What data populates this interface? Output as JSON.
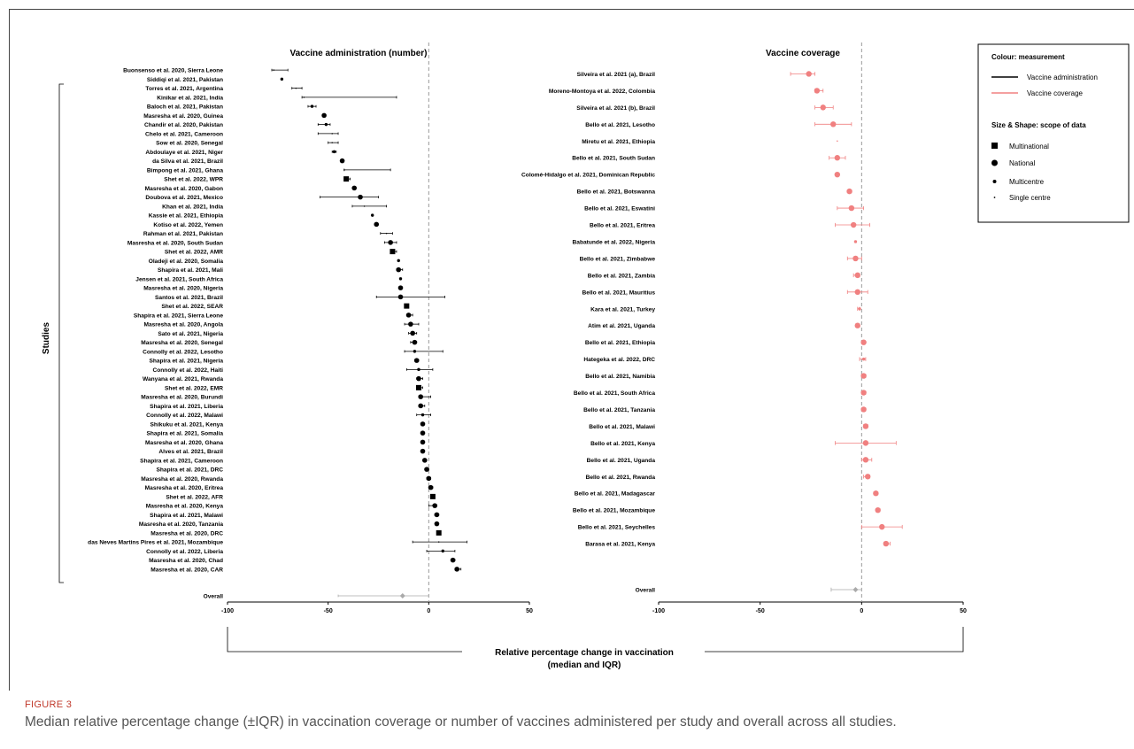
{
  "figure": {
    "label": "FIGURE 3",
    "caption": "Median relative percentage change (±IQR) in vaccination coverage or number of vaccines administered per study and overall across all studies."
  },
  "shared": {
    "y_axis_label": "Studies",
    "x_axis_label_line1": "Relative percentage change in vaccination",
    "x_axis_label_line2": "(median and IQR)"
  },
  "legend": {
    "colour_title": "Colour: measurement",
    "colour_items": [
      {
        "label": "Vaccine administration",
        "color": "#000000"
      },
      {
        "label": "Vaccine coverage",
        "color": "#f08080"
      }
    ],
    "shape_title": "Size & Shape: scope of data",
    "shape_items": [
      {
        "label": "Multinational",
        "shape": "square"
      },
      {
        "label": "National",
        "shape": "large-circle"
      },
      {
        "label": "Multicentre",
        "shape": "medium-circle"
      },
      {
        "label": "Single centre",
        "shape": "small-dot"
      }
    ],
    "placement": "top-right"
  },
  "chart_data": [
    {
      "type": "scatter",
      "title": "Vaccine administration (number)",
      "xlim": [
        -100,
        50
      ],
      "xticks": [
        -100,
        -50,
        0,
        50
      ],
      "reference_line": 0,
      "color": "#000000",
      "overall": {
        "label": "Overall",
        "median": -13,
        "q1": -45,
        "q3": 0,
        "color": "#aaaaaa"
      },
      "studies": [
        {
          "label": "Buonsenso et al. 2020, Sierra Leone",
          "median": -77,
          "q1": -78,
          "q3": -70,
          "scope": "single"
        },
        {
          "label": "Siddiqi et al. 2021, Pakistan",
          "median": -73,
          "q1": -73,
          "q3": -73,
          "scope": "multicentre"
        },
        {
          "label": "Torres et al. 2021, Argentina",
          "median": -66,
          "q1": -68,
          "q3": -63,
          "scope": "single"
        },
        {
          "label": "Kinikar et al. 2021, India",
          "median": -62,
          "q1": -63,
          "q3": -16,
          "scope": "single"
        },
        {
          "label": "Baloch et al. 2021, Pakistan",
          "median": -58,
          "q1": -60,
          "q3": -56,
          "scope": "multicentre"
        },
        {
          "label": "Masresha et al. 2020, Guinea",
          "median": -52,
          "q1": -52,
          "q3": -52,
          "scope": "national"
        },
        {
          "label": "Chandir et al. 2020, Pakistan",
          "median": -51,
          "q1": -55,
          "q3": -49,
          "scope": "multicentre"
        },
        {
          "label": "Chelo et al. 2021, Cameroon",
          "median": -48,
          "q1": -55,
          "q3": -45,
          "scope": "single"
        },
        {
          "label": "Sow et al. 2020, Senegal",
          "median": -48,
          "q1": -50,
          "q3": -45,
          "scope": "single"
        },
        {
          "label": "Abdoulaye et al. 2021, Niger",
          "median": -47,
          "q1": -48,
          "q3": -46,
          "scope": "multicentre"
        },
        {
          "label": "da Silva et al. 2021, Brazil",
          "median": -43,
          "q1": -43,
          "q3": -43,
          "scope": "national"
        },
        {
          "label": "Bimpong et al. 2021, Ghana",
          "median": -42,
          "q1": -42,
          "q3": -19,
          "scope": "single"
        },
        {
          "label": "Shet et al. 2022, WPR",
          "median": -41,
          "q1": -42,
          "q3": -39,
          "scope": "multinational"
        },
        {
          "label": "Masresha et al. 2020, Gabon",
          "median": -37,
          "q1": -37,
          "q3": -37,
          "scope": "national"
        },
        {
          "label": "Doubova et al. 2021, Mexico",
          "median": -34,
          "q1": -54,
          "q3": -25,
          "scope": "national"
        },
        {
          "label": "Khan et al. 2021, India",
          "median": -32,
          "q1": -38,
          "q3": -21,
          "scope": "single"
        },
        {
          "label": "Kassie et al. 2021, Ethiopia",
          "median": -28,
          "q1": -28,
          "q3": -28,
          "scope": "multicentre"
        },
        {
          "label": "Kotiso et al. 2022, Yemen",
          "median": -26,
          "q1": -26,
          "q3": -26,
          "scope": "national"
        },
        {
          "label": "Rahman et al. 2021, Pakistan",
          "median": -21,
          "q1": -24,
          "q3": -18,
          "scope": "single"
        },
        {
          "label": "Masresha et al. 2020, South Sudan",
          "median": -19,
          "q1": -22,
          "q3": -16,
          "scope": "national"
        },
        {
          "label": "Shet et al. 2022, AMR",
          "median": -18,
          "q1": -19,
          "q3": -16,
          "scope": "multinational"
        },
        {
          "label": "Oladeji et al. 2020, Somalia",
          "median": -15,
          "q1": -15,
          "q3": -15,
          "scope": "multicentre"
        },
        {
          "label": "Shapira et al. 2021, Mali",
          "median": -15,
          "q1": -16,
          "q3": -13,
          "scope": "national"
        },
        {
          "label": "Jensen et al. 2021, South Africa",
          "median": -14,
          "q1": -14,
          "q3": -14,
          "scope": "multicentre"
        },
        {
          "label": "Masresha et al. 2020, Nigeria",
          "median": -14,
          "q1": -14,
          "q3": -14,
          "scope": "national"
        },
        {
          "label": "Santos et al. 2021, Brazil",
          "median": -14,
          "q1": -26,
          "q3": 8,
          "scope": "national"
        },
        {
          "label": "Shet et al. 2022, SEAR",
          "median": -11,
          "q1": -12,
          "q3": -10,
          "scope": "multinational"
        },
        {
          "label": "Shapira et al. 2021, Sierra Leone",
          "median": -10,
          "q1": -11,
          "q3": -8,
          "scope": "national"
        },
        {
          "label": "Masresha et al. 2020, Angola",
          "median": -9,
          "q1": -12,
          "q3": -5,
          "scope": "national"
        },
        {
          "label": "Sato et al. 2021, Nigeria",
          "median": -8,
          "q1": -10,
          "q3": -6,
          "scope": "national"
        },
        {
          "label": "Masresha et al. 2020, Senegal",
          "median": -7,
          "q1": -9,
          "q3": -6,
          "scope": "national"
        },
        {
          "label": "Connolly et al. 2022, Lesotho",
          "median": -7,
          "q1": -12,
          "q3": 7,
          "scope": "multicentre"
        },
        {
          "label": "Shapira et al. 2021, Nigeria",
          "median": -6,
          "q1": -7,
          "q3": -5,
          "scope": "national"
        },
        {
          "label": "Connolly et al. 2022, Haiti",
          "median": -5,
          "q1": -11,
          "q3": 2,
          "scope": "multicentre"
        },
        {
          "label": "Wanyana et al. 2021, Rwanda",
          "median": -5,
          "q1": -6,
          "q3": -3,
          "scope": "national"
        },
        {
          "label": "Shet et al. 2022, EMR",
          "median": -5,
          "q1": -6,
          "q3": -3,
          "scope": "multinational"
        },
        {
          "label": "Masresha et al. 2020, Burundi",
          "median": -4,
          "q1": -5,
          "q3": 1,
          "scope": "national"
        },
        {
          "label": "Shapira et al. 2021, Liberia",
          "median": -4,
          "q1": -5,
          "q3": -2,
          "scope": "national"
        },
        {
          "label": "Connolly et al. 2022, Malawi",
          "median": -3,
          "q1": -6,
          "q3": 1,
          "scope": "multicentre"
        },
        {
          "label": "Shikuku et al. 2021, Kenya",
          "median": -3,
          "q1": -3,
          "q3": -3,
          "scope": "national"
        },
        {
          "label": "Shapira et al. 2021, Somalia",
          "median": -3,
          "q1": -3,
          "q3": -3,
          "scope": "national"
        },
        {
          "label": "Masresha et al. 2020, Ghana",
          "median": -3,
          "q1": -3,
          "q3": -3,
          "scope": "national"
        },
        {
          "label": "Alves et al. 2021, Brazil",
          "median": -3,
          "q1": -3,
          "q3": -3,
          "scope": "national"
        },
        {
          "label": "Shapira et al. 2021, Cameroon",
          "median": -2,
          "q1": -2,
          "q3": -2,
          "scope": "national"
        },
        {
          "label": "Shapira et al. 2021, DRC",
          "median": -1,
          "q1": -2,
          "q3": 0,
          "scope": "national"
        },
        {
          "label": "Masresha et al. 2020, Rwanda",
          "median": 0,
          "q1": -1,
          "q3": 1,
          "scope": "national"
        },
        {
          "label": "Masresha et al. 2020, Eritrea",
          "median": 1,
          "q1": 0,
          "q3": 2,
          "scope": "national"
        },
        {
          "label": "Shet et al. 2022, AFR",
          "median": 2,
          "q1": 1,
          "q3": 3,
          "scope": "multinational"
        },
        {
          "label": "Masresha et al. 2020, Kenya",
          "median": 3,
          "q1": 0,
          "q3": 4,
          "scope": "national"
        },
        {
          "label": "Shapira et al. 2021, Malawi",
          "median": 4,
          "q1": 3,
          "q3": 5,
          "scope": "national"
        },
        {
          "label": "Masresha et al. 2020, Tanzania",
          "median": 4,
          "q1": 4,
          "q3": 4,
          "scope": "national"
        },
        {
          "label": "Masresha et al. 2020, DRC",
          "median": 5,
          "q1": 4,
          "q3": 6,
          "scope": "multinational"
        },
        {
          "label": "das Neves Martins Pires et al. 2021, Mozambique",
          "median": 5,
          "q1": -8,
          "q3": 19,
          "scope": "single"
        },
        {
          "label": "Connolly et al. 2022, Liberia",
          "median": 7,
          "q1": -1,
          "q3": 13,
          "scope": "multicentre"
        },
        {
          "label": "Masresha et al. 2020, Chad",
          "median": 12,
          "q1": 11,
          "q3": 13,
          "scope": "national"
        },
        {
          "label": "Masresha et al. 2020, CAR",
          "median": 14,
          "q1": 13,
          "q3": 16,
          "scope": "national"
        }
      ]
    },
    {
      "type": "scatter",
      "title": "Vaccine coverage",
      "xlim": [
        -100,
        50
      ],
      "xticks": [
        -100,
        -50,
        0,
        50
      ],
      "reference_line": 0,
      "color": "#f08080",
      "overall": {
        "label": "Overall",
        "median": -3,
        "q1": -15,
        "q3": 0,
        "color": "#aaaaaa"
      },
      "studies": [
        {
          "label": "Silveira et al. 2021 (a), Brazil",
          "median": -26,
          "q1": -35,
          "q3": -23,
          "scope": "national"
        },
        {
          "label": "Moreno-Montoya et al. 2022, Colombia",
          "median": -22,
          "q1": -23,
          "q3": -19,
          "scope": "national"
        },
        {
          "label": "Silveira et al. 2021 (b), Brazil",
          "median": -19,
          "q1": -23,
          "q3": -14,
          "scope": "national"
        },
        {
          "label": "Bello et al. 2021, Lesotho",
          "median": -14,
          "q1": -23,
          "q3": -5,
          "scope": "national"
        },
        {
          "label": "Miretu et al. 2021, Ethiopia",
          "median": -12,
          "q1": -12,
          "q3": -12,
          "scope": "single"
        },
        {
          "label": "Bello et al. 2021, South Sudan",
          "median": -12,
          "q1": -16,
          "q3": -8,
          "scope": "national"
        },
        {
          "label": "Colomé-Hidalgo et al. 2021, Dominican Republic",
          "median": -12,
          "q1": -12,
          "q3": -12,
          "scope": "national"
        },
        {
          "label": "Bello et al. 2021, Botswanna",
          "median": -6,
          "q1": -7,
          "q3": -5,
          "scope": "national"
        },
        {
          "label": "Bello et al. 2021, Eswatini",
          "median": -5,
          "q1": -12,
          "q3": 1,
          "scope": "national"
        },
        {
          "label": "Bello et al. 2021, Eritrea",
          "median": -4,
          "q1": -13,
          "q3": 4,
          "scope": "national"
        },
        {
          "label": "Babatunde et al. 2022, Nigeria",
          "median": -3,
          "q1": -3,
          "q3": -3,
          "scope": "multicentre"
        },
        {
          "label": "Bello et al. 2021, Zimbabwe",
          "median": -3,
          "q1": -7,
          "q3": 0,
          "scope": "national"
        },
        {
          "label": "Bello et al. 2021, Zambia",
          "median": -2,
          "q1": -4,
          "q3": -1,
          "scope": "national"
        },
        {
          "label": "Bello et al. 2021, Mauritius",
          "median": -2,
          "q1": -7,
          "q3": 3,
          "scope": "national"
        },
        {
          "label": "Kara et al. 2021, Turkey",
          "median": -1,
          "q1": -2,
          "q3": -1,
          "scope": "multicentre"
        },
        {
          "label": "Atim et al. 2021, Uganda",
          "median": -2,
          "q1": -3,
          "q3": -1,
          "scope": "national"
        },
        {
          "label": "Bello et al. 2021, Ethiopia",
          "median": 1,
          "q1": 0,
          "q3": 1,
          "scope": "national"
        },
        {
          "label": "Hategeka et al. 2022, DRC",
          "median": 1,
          "q1": -1,
          "q3": 2,
          "scope": "multicentre"
        },
        {
          "label": "Bello et al. 2021, Namibia",
          "median": 1,
          "q1": 0,
          "q3": 2,
          "scope": "national"
        },
        {
          "label": "Bello et al. 2021, South Africa",
          "median": 1,
          "q1": 0,
          "q3": 2,
          "scope": "national"
        },
        {
          "label": "Bello et al. 2021, Tanzania",
          "median": 1,
          "q1": 0,
          "q3": 2,
          "scope": "national"
        },
        {
          "label": "Bello et al. 2021, Malawi",
          "median": 2,
          "q1": 1,
          "q3": 3,
          "scope": "national"
        },
        {
          "label": "Bello et al. 2021, Kenya",
          "median": 2,
          "q1": -13,
          "q3": 17,
          "scope": "national"
        },
        {
          "label": "Bello et al. 2021, Uganda",
          "median": 2,
          "q1": 0,
          "q3": 5,
          "scope": "national"
        },
        {
          "label": "Bello et al. 2021, Rwanda",
          "median": 3,
          "q1": 1,
          "q3": 4,
          "scope": "national"
        },
        {
          "label": "Bello et al. 2021, Madagascar",
          "median": 7,
          "q1": 6,
          "q3": 8,
          "scope": "national"
        },
        {
          "label": "Bello et al. 2021, Mozambique",
          "median": 8,
          "q1": 7,
          "q3": 9,
          "scope": "national"
        },
        {
          "label": "Bello et al. 2021, Seychelles",
          "median": 10,
          "q1": 0,
          "q3": 20,
          "scope": "national"
        },
        {
          "label": "Barasa et al. 2021, Kenya",
          "median": 12,
          "q1": 11,
          "q3": 14,
          "scope": "national"
        }
      ]
    }
  ]
}
